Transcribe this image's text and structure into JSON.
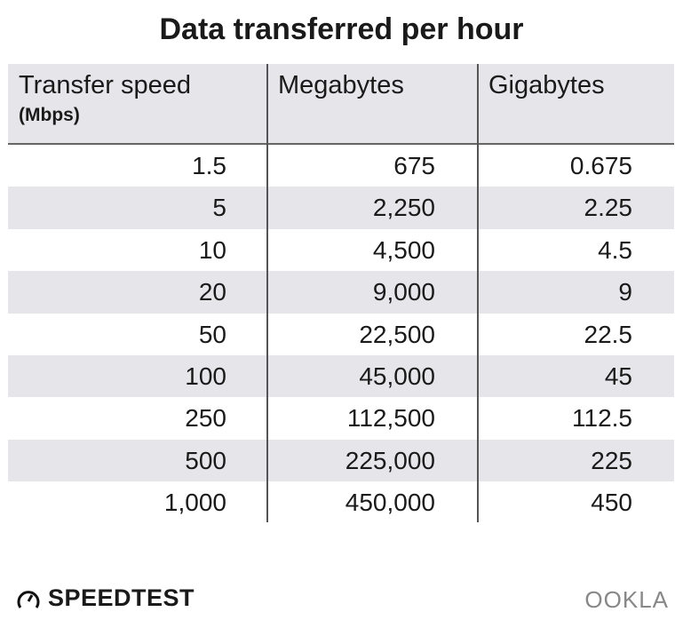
{
  "chart_data": {
    "type": "table",
    "title": "Data transferred per hour",
    "columns": [
      "Transfer speed",
      "Megabytes",
      "Gigabytes"
    ],
    "column_sub": [
      "(Mbps)",
      "",
      ""
    ],
    "rows": [
      [
        "1.5",
        "675",
        "0.675"
      ],
      [
        "5",
        "2,250",
        "2.25"
      ],
      [
        "10",
        "4,500",
        "4.5"
      ],
      [
        "20",
        "9,000",
        "9"
      ],
      [
        "50",
        "22,500",
        "22.5"
      ],
      [
        "100",
        "45,000",
        "45"
      ],
      [
        "250",
        "112,500",
        "112.5"
      ],
      [
        "500",
        "225,000",
        "225"
      ],
      [
        "1,000",
        "450,000",
        "450"
      ]
    ],
    "stripe_color": "#e6e6ea"
  },
  "footer": {
    "left_logo": "SPEEDTEST",
    "right_logo": "OOKLA"
  }
}
